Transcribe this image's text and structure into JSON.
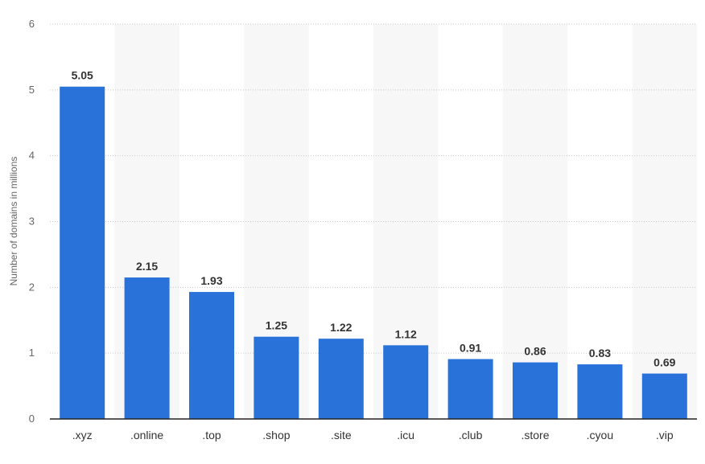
{
  "chart_data": {
    "type": "bar",
    "categories": [
      ".xyz",
      ".online",
      ".top",
      ".shop",
      ".site",
      ".icu",
      ".club",
      ".store",
      ".cyou",
      ".vip"
    ],
    "values": [
      5.05,
      2.15,
      1.93,
      1.25,
      1.22,
      1.12,
      0.91,
      0.86,
      0.83,
      0.69
    ],
    "value_labels": [
      "5.05",
      "2.15",
      "1.93",
      "1.25",
      "1.22",
      "1.12",
      "0.91",
      "0.86",
      "0.83",
      "0.69"
    ],
    "ylabel": "Number of domains in millions",
    "ylim": [
      0,
      6
    ],
    "yticks": [
      "0",
      "1",
      "2",
      "3",
      "4",
      "5",
      "6"
    ],
    "grid": true,
    "alternating_bands": true,
    "colors": {
      "bar": "#2872d9",
      "band": "#f7f7f7",
      "grid": "#c8c8c8"
    }
  }
}
